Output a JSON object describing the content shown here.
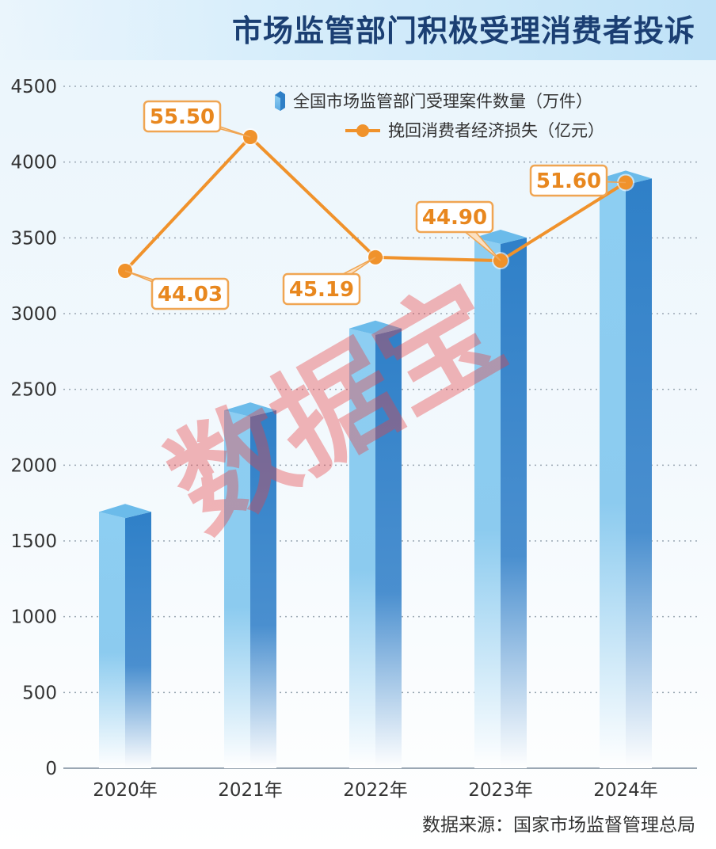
{
  "title": "市场监管部门积极受理消费者投诉",
  "source": "数据来源：国家市场监督管理总局",
  "watermark": "数据宝",
  "colors": {
    "bar_light": "#7cc4ee",
    "bar_dark": "#2f7fc6",
    "bar_top": "#6bbbea",
    "line": "#f0922b",
    "label_text": "#e8871e"
  },
  "chart_data": {
    "type": "bar",
    "title": "市场监管部门积极受理消费者投诉",
    "categories": [
      "2020年",
      "2021年",
      "2022年",
      "2023年",
      "2024年"
    ],
    "ylim": [
      0,
      4500
    ],
    "yticks": [
      0,
      500,
      1000,
      1500,
      2000,
      2500,
      3000,
      3500,
      4000,
      4500
    ],
    "grid": true,
    "legend_position": "top-right",
    "series": [
      {
        "name": "全国市场监管部门受理案件数量（万件）",
        "type": "bar",
        "values": [
          1650,
          2320,
          2860,
          3460,
          3850
        ]
      },
      {
        "name": "挽回消费者经济损失（亿元）",
        "type": "line",
        "values": [
          44.03,
          55.5,
          45.19,
          44.9,
          51.6
        ],
        "labels": [
          "44.03",
          "55.50",
          "45.19",
          "44.90",
          "51.60"
        ]
      }
    ]
  }
}
